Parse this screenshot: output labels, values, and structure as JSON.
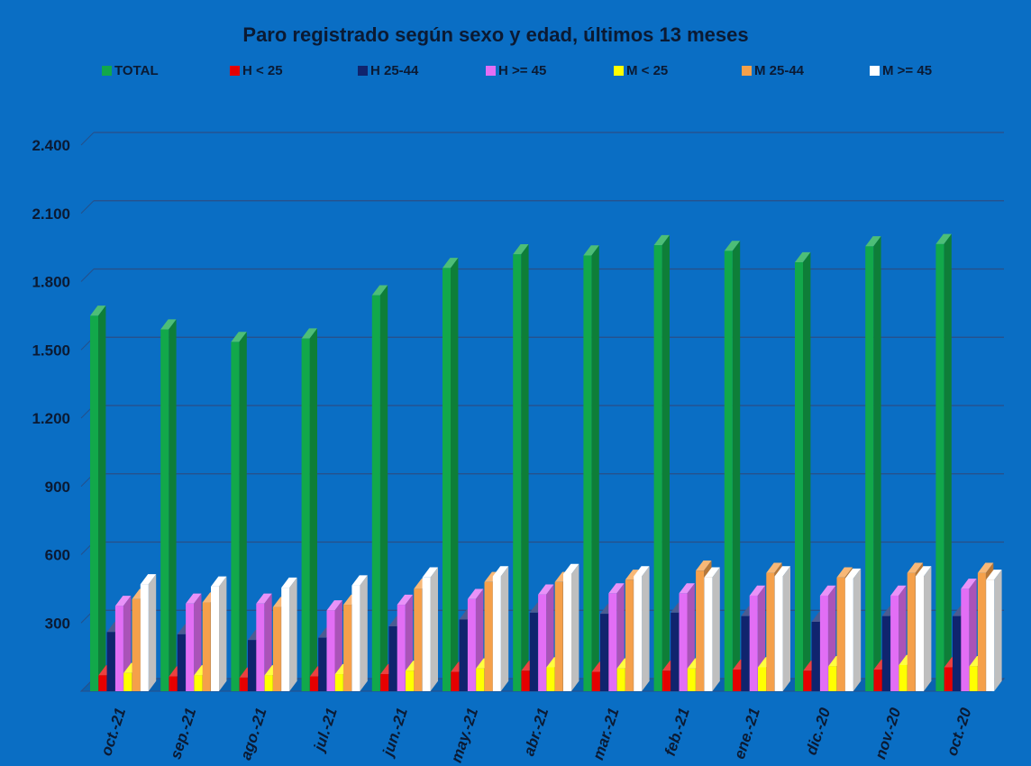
{
  "chart_data": {
    "type": "bar",
    "title": "Paro registrado según sexo y edad, últimos 13 meses",
    "xlabel": "",
    "ylabel": "",
    "ylim": [
      0,
      2400
    ],
    "yticks": [
      "300",
      "600",
      "900",
      "1.200",
      "1.500",
      "1.800",
      "2.100",
      "2.400"
    ],
    "ytick_values": [
      300,
      600,
      900,
      1200,
      1500,
      1800,
      2100,
      2400
    ],
    "grid": true,
    "legend_position": "top",
    "categories": [
      "oct.-21",
      "sep.-21",
      "ago.-21",
      "jul.-21",
      "jun.-21",
      "may.-21",
      "abr.-21",
      "mar.-21",
      "feb.-21",
      "ene.-21",
      "dic.-20",
      "nov.-20",
      "oct.-20"
    ],
    "series": [
      {
        "name": "TOTAL",
        "color": "#12a84a",
        "values": [
          1650,
          1590,
          1535,
          1550,
          1740,
          1860,
          1920,
          1915,
          1960,
          1935,
          1885,
          1955,
          1965
        ]
      },
      {
        "name": "H < 25",
        "color": "#e60000",
        "values": [
          70,
          65,
          60,
          65,
          75,
          85,
          90,
          85,
          90,
          95,
          90,
          95,
          105
        ]
      },
      {
        "name": "H 25-44",
        "color": "#10246e",
        "values": [
          260,
          250,
          225,
          235,
          285,
          315,
          345,
          340,
          345,
          330,
          305,
          330,
          330
        ]
      },
      {
        "name": "H >= 45",
        "color": "#e26ef5",
        "values": [
          375,
          385,
          385,
          355,
          380,
          405,
          425,
          430,
          430,
          420,
          420,
          420,
          450
        ]
      },
      {
        "name": "M < 25",
        "color": "#ffff00",
        "values": [
          80,
          70,
          70,
          75,
          90,
          100,
          105,
          100,
          100,
          105,
          110,
          115,
          110
        ]
      },
      {
        "name": "M 25-44",
        "color": "#f5a04a",
        "values": [
          405,
          390,
          370,
          380,
          450,
          480,
          480,
          490,
          530,
          520,
          500,
          520,
          520
        ]
      },
      {
        "name": "M >= 45",
        "color": "#ffffff",
        "values": [
          470,
          460,
          455,
          465,
          500,
          505,
          515,
          505,
          500,
          505,
          495,
          505,
          490
        ]
      }
    ]
  }
}
